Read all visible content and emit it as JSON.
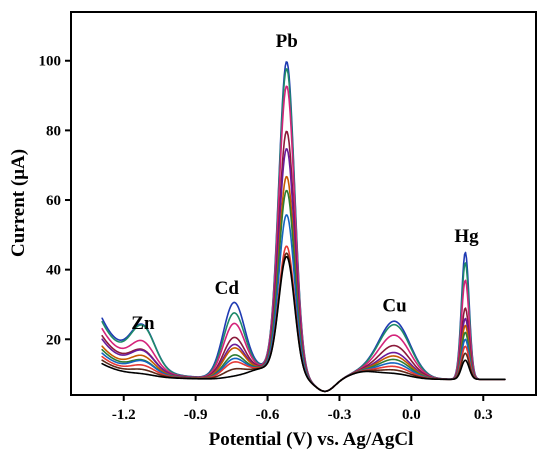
{
  "chart_data": {
    "type": "line",
    "title": "",
    "xlabel": "Potential (V) vs. Ag/AgCl",
    "ylabel": "Current (μA)",
    "xlim": [
      -1.42,
      0.52
    ],
    "ylim": [
      4,
      114
    ],
    "x_ticks": [
      -1.2,
      -0.9,
      -0.6,
      -0.3,
      0.0,
      0.3
    ],
    "x_tick_labels": [
      "-1.2",
      "-0.9",
      "-0.6",
      "-0.3",
      "0.0",
      "0.3"
    ],
    "y_ticks": [
      20,
      40,
      60,
      80,
      100
    ],
    "y_tick_labels": [
      "20",
      "40",
      "60",
      "80",
      "100"
    ],
    "grid": false,
    "legend": "none",
    "annotations": [
      {
        "text": "Zn",
        "x": -1.12,
        "y": 23
      },
      {
        "text": "Cd",
        "x": -0.77,
        "y": 33
      },
      {
        "text": "Pb",
        "x": -0.52,
        "y": 104
      },
      {
        "text": "Cu",
        "x": -0.07,
        "y": 28
      },
      {
        "text": "Hg",
        "x": 0.23,
        "y": 48
      }
    ],
    "peaks": [
      {
        "name": "Zn",
        "center": -1.12,
        "width": 0.05
      },
      {
        "name": "Cd",
        "center": -0.74,
        "width": 0.045
      },
      {
        "name": "Pb",
        "center": -0.52,
        "width": 0.033
      },
      {
        "name": "Cu",
        "center": -0.07,
        "width": 0.065
      },
      {
        "name": "Hg",
        "center": 0.225,
        "width": 0.016
      }
    ],
    "x_range": [
      -1.29,
      0.39
    ],
    "series": [
      {
        "color": "#1f3bb3",
        "values": {
          "zn": 20.0,
          "cd": 30.0,
          "pb": 99.0,
          "cu": 25.0,
          "hg": 45.0,
          "start": 26.0
        }
      },
      {
        "color": "#1e8a6a",
        "values": {
          "zn": 20.0,
          "cd": 27.0,
          "pb": 97.0,
          "cu": 24.0,
          "hg": 42.0,
          "start": 25.0
        }
      },
      {
        "color": "#d4247a",
        "values": {
          "zn": 16.0,
          "cd": 24.0,
          "pb": 92.0,
          "cu": 21.0,
          "hg": 37.0,
          "start": 23.0
        }
      },
      {
        "color": "#8b1a3a",
        "values": {
          "zn": 14.0,
          "cd": 20.0,
          "pb": 79.0,
          "cu": 18.0,
          "hg": 29.0,
          "start": 21.0
        }
      },
      {
        "color": "#6a1b9a",
        "values": {
          "zn": 14.0,
          "cd": 18.0,
          "pb": 74.0,
          "cu": 16.0,
          "hg": 26.0,
          "start": 20.0
        }
      },
      {
        "color": "#c65a00",
        "values": {
          "zn": 13.0,
          "cd": 17.0,
          "pb": 66.0,
          "cu": 15.0,
          "hg": 24.0,
          "start": 18.0
        }
      },
      {
        "color": "#2e7d32",
        "values": {
          "zn": 12.0,
          "cd": 15.0,
          "pb": 62.0,
          "cu": 14.0,
          "hg": 22.0,
          "start": 17.0
        }
      },
      {
        "color": "#1565c0",
        "values": {
          "zn": 12.0,
          "cd": 14.0,
          "pb": 55.0,
          "cu": 13.0,
          "hg": 20.0,
          "start": 16.0
        }
      },
      {
        "color": "#e53935",
        "values": {
          "zn": 11.0,
          "cd": 13.0,
          "pb": 46.0,
          "cu": 12.0,
          "hg": 18.0,
          "start": 15.0
        }
      },
      {
        "color": "#5d2a1a",
        "values": {
          "zn": 10.0,
          "cd": 11.0,
          "pb": 44.0,
          "cu": 11.0,
          "hg": 16.0,
          "start": 14.0
        }
      },
      {
        "color": "#000000",
        "values": {
          "zn": 9.0,
          "cd": 9.0,
          "pb": 43.0,
          "cu": 10.0,
          "hg": 14.0,
          "start": 13.0
        }
      }
    ]
  }
}
